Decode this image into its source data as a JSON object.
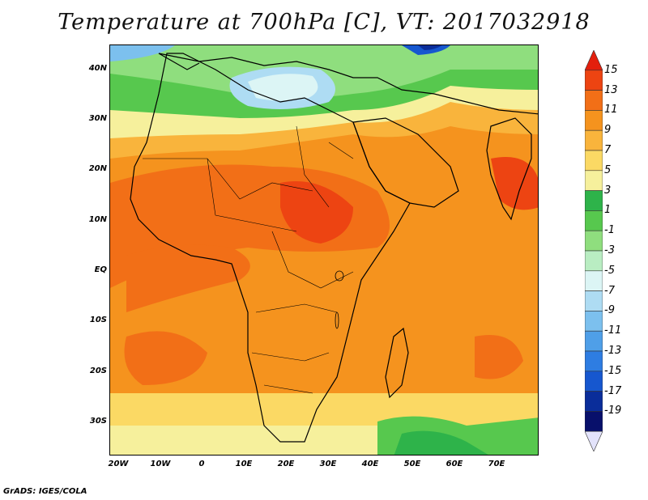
{
  "title": "Temperature at 700hPa [C], VT: 2017032918",
  "credit": "GrADS: IGES/COLA",
  "axes": {
    "lat_labels": [
      "40N",
      "30N",
      "20N",
      "10N",
      "EQ",
      "10S",
      "20S",
      "30S"
    ],
    "lon_labels": [
      "20W",
      "10W",
      "0",
      "10E",
      "20E",
      "30E",
      "40E",
      "50E",
      "60E",
      "70E"
    ]
  },
  "colorbar": {
    "labels": [
      "15",
      "13",
      "11",
      "9",
      "7",
      "5",
      "3",
      "1",
      "-1",
      "-3",
      "-5",
      "-7",
      "-9",
      "-11",
      "-13",
      "-15",
      "-17",
      "-19"
    ],
    "colors": [
      "#e31f0d",
      "#ed4412",
      "#f26f17",
      "#f5931e",
      "#f9b43c",
      "#fbd964",
      "#f6f09c",
      "#2eb34a",
      "#57c84e",
      "#8fde7e",
      "#b9edc2",
      "#dcf5f5",
      "#aedcf3",
      "#7cc0ee",
      "#4f9fe8",
      "#2e7de2",
      "#1657cf",
      "#0a2d9a",
      "#08106b",
      "#e3e3fb"
    ]
  }
}
